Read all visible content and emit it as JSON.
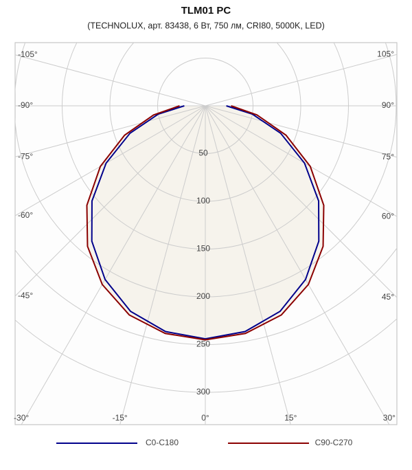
{
  "chart_data": {
    "type": "polar",
    "title": "TLM01 PC",
    "subtitle": "(TECHNOLUX, арт. 83438, 6 Вт, 750 лм, CRI80, 5000K, LED)",
    "angles": [
      -90,
      -80,
      -70,
      -60,
      -50,
      -40,
      -30,
      -20,
      -10,
      0,
      10,
      20,
      30,
      40,
      50,
      60,
      70,
      80,
      90
    ],
    "series": [
      {
        "name": "C0-C180",
        "color": "#00008b",
        "values": [
          22,
          50,
          84,
          120,
          155,
          185,
          210,
          229,
          240,
          244,
          240,
          229,
          210,
          185,
          155,
          120,
          84,
          50,
          22
        ]
      },
      {
        "name": "C90-C270",
        "color": "#8b0000",
        "values": [
          27,
          55,
          90,
          127,
          162,
          192,
          216,
          233,
          242,
          245,
          242,
          233,
          216,
          192,
          162,
          127,
          90,
          55,
          27
        ]
      }
    ],
    "rlim": [
      0,
      300
    ],
    "rticks": [
      50,
      100,
      150,
      200,
      250,
      300
    ],
    "angle_ticks": [
      {
        "value": -105,
        "label": "-105°"
      },
      {
        "value": -90,
        "label": "-90°"
      },
      {
        "value": -75,
        "label": "-75°"
      },
      {
        "value": -60,
        "label": "-60°"
      },
      {
        "value": -45,
        "label": "-45°"
      },
      {
        "value": -30,
        "label": "-30°"
      },
      {
        "value": -15,
        "label": "-15°"
      },
      {
        "value": 0,
        "label": "0°"
      },
      {
        "value": 15,
        "label": "15°"
      },
      {
        "value": 30,
        "label": "30°"
      },
      {
        "value": 45,
        "label": "45°"
      },
      {
        "value": 60,
        "label": "60°"
      },
      {
        "value": 75,
        "label": "75°"
      },
      {
        "value": 90,
        "label": "90°"
      },
      {
        "value": 105,
        "label": "105°"
      }
    ],
    "fill_color": "#f6f3ec"
  }
}
